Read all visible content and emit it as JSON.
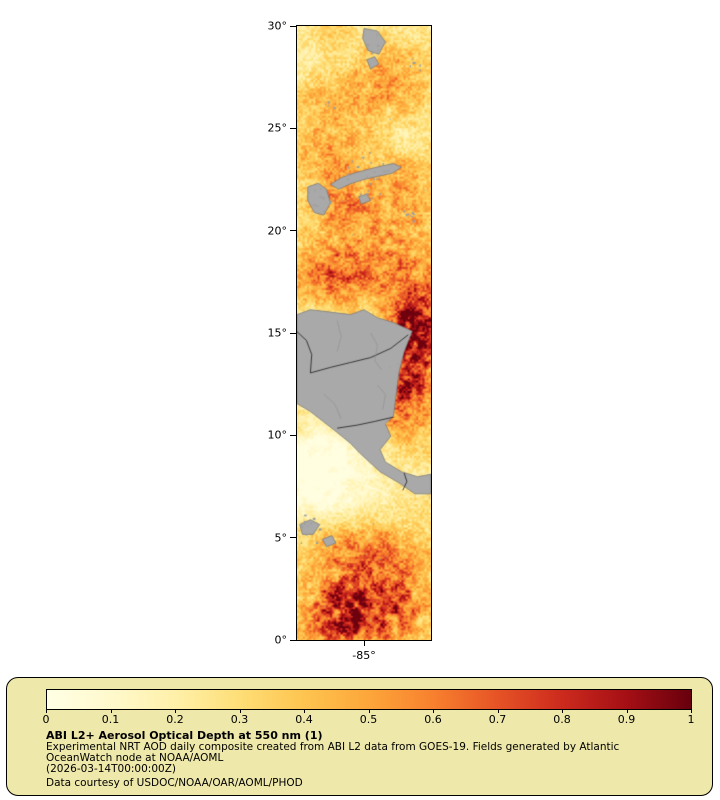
{
  "map": {
    "y_tick_labels": [
      "30°",
      "25°",
      "20°",
      "15°",
      "10°",
      "5°",
      "0°"
    ],
    "x_tick_label": "-85°"
  },
  "legend": {
    "title": "ABI L2+ Aerosol Optical Depth at 550 nm (1)",
    "desc_line1": "Experimental NRT AOD daily composite created from ABI L2 data from GOES-19. Fields generated by Atlantic",
    "desc_line2": "OceanWatch node at NOAA/AOML",
    "timestamp": "(2026-03-14T00:00:00Z)",
    "credit": "Data courtesy of USDOC/NOAA/OAR/AOML/PHOD",
    "tick_labels": [
      "0",
      "0.1",
      "0.2",
      "0.3",
      "0.4",
      "0.5",
      "0.6",
      "0.7",
      "0.8",
      "0.9",
      "1"
    ],
    "background": "#eee8aa"
  },
  "chart_data": {
    "type": "heatmap",
    "title": "ABI L2+ Aerosol Optical Depth at 550 nm (1)",
    "variable": "Aerosol Optical Depth at 550 nm",
    "source": "ABI L2 data from GOES-19",
    "value_range": [
      0,
      1
    ],
    "lat_ticks_deg": [
      30,
      25,
      20,
      15,
      10,
      5,
      0
    ],
    "lat_axis_range_deg": [
      0,
      30
    ],
    "lon_tick_deg": -85,
    "lon_axis_range_deg": [
      -88.3,
      -81.7
    ],
    "colorbar_ticks": [
      0,
      0.1,
      0.2,
      0.3,
      0.4,
      0.5,
      0.6,
      0.7,
      0.8,
      0.9,
      1
    ],
    "colormap": {
      "stops": [
        [
          0.0,
          "#ffffe5"
        ],
        [
          0.1,
          "#fff9cc"
        ],
        [
          0.2,
          "#fff0a9"
        ],
        [
          0.3,
          "#fede76"
        ],
        [
          0.4,
          "#fec44f"
        ],
        [
          0.5,
          "#fda63a"
        ],
        [
          0.6,
          "#f8802e"
        ],
        [
          0.7,
          "#e65326"
        ],
        [
          0.8,
          "#cc2a1d"
        ],
        [
          0.9,
          "#a50f15"
        ],
        [
          1.0,
          "#67000d"
        ]
      ]
    },
    "land_fill": "#a9a9a9",
    "land_stroke": "#757575",
    "border_line_color": "#1a1a1a",
    "river_color": "#8f8f8f",
    "speck_color": "#9e9e9e",
    "hotspots": [
      {
        "fx": 0.82,
        "fy": 0.57,
        "sx": 0.17,
        "sy": 0.075,
        "amp": 0.55
      },
      {
        "fx": 0.67,
        "fy": 0.375,
        "sx": 0.34,
        "sy": 0.058,
        "amp": 0.3
      },
      {
        "fx": 0.45,
        "fy": 0.27,
        "sx": 0.37,
        "sy": 0.05,
        "amp": 0.2
      },
      {
        "fx": 0.34,
        "fy": 0.95,
        "sx": 0.21,
        "sy": 0.05,
        "amp": 0.6
      },
      {
        "fx": 0.75,
        "fy": 0.945,
        "sx": 0.22,
        "sy": 0.042,
        "amp": 0.45
      },
      {
        "fx": 0.52,
        "fy": 0.845,
        "sx": 0.37,
        "sy": 0.034,
        "amp": 0.25
      },
      {
        "fx": 0.6,
        "fy": 0.095,
        "sx": 0.34,
        "sy": 0.058,
        "amp": 0.22
      },
      {
        "fx": 0.15,
        "fy": 0.195,
        "sx": 0.19,
        "sy": 0.042,
        "amp": 0.15
      },
      {
        "fx": 0.9,
        "fy": 0.49,
        "sx": 0.15,
        "sy": 0.042,
        "amp": 0.35
      },
      {
        "fx": 0.22,
        "fy": 0.405,
        "sx": 0.19,
        "sy": 0.05,
        "amp": 0.2
      },
      {
        "fx": 0.11,
        "fy": 0.75,
        "sx": 0.26,
        "sy": 0.066,
        "amp": -0.18
      },
      {
        "fx": 0.5,
        "fy": 0.7,
        "sx": 0.4,
        "sy": 0.04,
        "amp": -0.1
      }
    ],
    "land_polygons": [
      [
        [
          0.0,
          0.47
        ],
        [
          0.1,
          0.462
        ],
        [
          0.25,
          0.466
        ],
        [
          0.4,
          0.47
        ],
        [
          0.5,
          0.462
        ],
        [
          0.6,
          0.475
        ],
        [
          0.72,
          0.483
        ],
        [
          0.86,
          0.497
        ],
        [
          0.8,
          0.53
        ],
        [
          0.76,
          0.565
        ],
        [
          0.74,
          0.6
        ],
        [
          0.72,
          0.635
        ],
        [
          0.66,
          0.648
        ],
        [
          0.7,
          0.668
        ],
        [
          0.62,
          0.69
        ],
        [
          0.66,
          0.71
        ],
        [
          0.78,
          0.726
        ],
        [
          0.9,
          0.734
        ],
        [
          1.0,
          0.73
        ],
        [
          1.0,
          0.762
        ],
        [
          0.88,
          0.762
        ],
        [
          0.76,
          0.744
        ],
        [
          0.62,
          0.726
        ],
        [
          0.55,
          0.712
        ],
        [
          0.47,
          0.696
        ],
        [
          0.4,
          0.68
        ],
        [
          0.3,
          0.662
        ],
        [
          0.2,
          0.645
        ],
        [
          0.1,
          0.628
        ],
        [
          0.0,
          0.615
        ]
      ],
      [
        [
          0.25,
          0.258
        ],
        [
          0.33,
          0.247
        ],
        [
          0.42,
          0.24
        ],
        [
          0.52,
          0.234
        ],
        [
          0.63,
          0.228
        ],
        [
          0.72,
          0.224
        ],
        [
          0.78,
          0.23
        ],
        [
          0.71,
          0.24
        ],
        [
          0.6,
          0.245
        ],
        [
          0.5,
          0.25
        ],
        [
          0.4,
          0.257
        ],
        [
          0.31,
          0.266
        ]
      ],
      [
        [
          0.46,
          0.278
        ],
        [
          0.52,
          0.274
        ],
        [
          0.55,
          0.284
        ],
        [
          0.48,
          0.29
        ]
      ],
      [
        [
          0.08,
          0.262
        ],
        [
          0.16,
          0.256
        ],
        [
          0.22,
          0.266
        ],
        [
          0.25,
          0.288
        ],
        [
          0.2,
          0.308
        ],
        [
          0.13,
          0.304
        ],
        [
          0.08,
          0.284
        ]
      ],
      [
        [
          0.5,
          0.004
        ],
        [
          0.6,
          0.008
        ],
        [
          0.66,
          0.026
        ],
        [
          0.61,
          0.046
        ],
        [
          0.53,
          0.04
        ],
        [
          0.49,
          0.02
        ]
      ],
      [
        [
          0.52,
          0.055
        ],
        [
          0.58,
          0.05
        ],
        [
          0.61,
          0.062
        ],
        [
          0.55,
          0.07
        ]
      ],
      [
        [
          0.02,
          0.812
        ],
        [
          0.1,
          0.804
        ],
        [
          0.17,
          0.812
        ],
        [
          0.12,
          0.828
        ],
        [
          0.04,
          0.828
        ]
      ],
      [
        [
          0.19,
          0.836
        ],
        [
          0.26,
          0.83
        ],
        [
          0.29,
          0.842
        ],
        [
          0.22,
          0.848
        ]
      ]
    ],
    "border_lines": [
      [
        [
          0.0,
          0.498
        ],
        [
          0.07,
          0.512
        ],
        [
          0.11,
          0.535
        ],
        [
          0.1,
          0.565
        ],
        [
          0.25,
          0.556
        ],
        [
          0.4,
          0.548
        ],
        [
          0.55,
          0.54
        ],
        [
          0.7,
          0.525
        ],
        [
          0.83,
          0.503
        ]
      ],
      [
        [
          0.3,
          0.655
        ],
        [
          0.45,
          0.65
        ],
        [
          0.58,
          0.644
        ],
        [
          0.72,
          0.637
        ]
      ],
      [
        [
          0.8,
          0.728
        ],
        [
          0.82,
          0.742
        ],
        [
          0.79,
          0.756
        ]
      ]
    ],
    "rivers": [
      [
        [
          0.55,
          0.5
        ],
        [
          0.6,
          0.52
        ],
        [
          0.58,
          0.545
        ],
        [
          0.63,
          0.56
        ]
      ],
      [
        [
          0.3,
          0.48
        ],
        [
          0.33,
          0.505
        ],
        [
          0.3,
          0.53
        ]
      ],
      [
        [
          0.6,
          0.585
        ],
        [
          0.66,
          0.6
        ],
        [
          0.64,
          0.625
        ]
      ],
      [
        [
          0.2,
          0.6
        ],
        [
          0.28,
          0.615
        ],
        [
          0.33,
          0.64
        ]
      ]
    ],
    "speck_clusters": [
      {
        "fx": 0.55,
        "fy": 0.245,
        "r": 26,
        "n": 22
      },
      {
        "fx": 0.15,
        "fy": 0.285,
        "r": 14,
        "n": 10
      },
      {
        "fx": 0.85,
        "fy": 0.3,
        "r": 10,
        "n": 8
      },
      {
        "fx": 0.08,
        "fy": 0.82,
        "r": 16,
        "n": 14
      },
      {
        "fx": 0.57,
        "fy": 0.03,
        "r": 12,
        "n": 8
      },
      {
        "fx": 0.88,
        "fy": 0.06,
        "r": 8,
        "n": 5
      },
      {
        "fx": 0.25,
        "fy": 0.13,
        "r": 6,
        "n": 4
      }
    ]
  }
}
